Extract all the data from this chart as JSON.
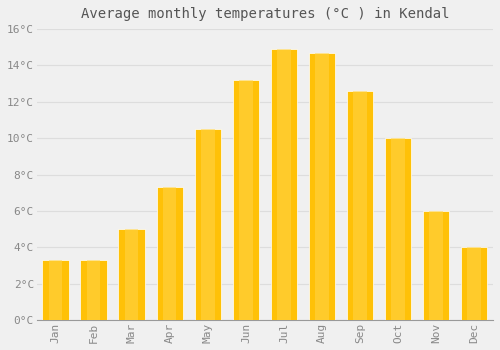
{
  "title": "Average monthly temperatures (°C ) in Kendal",
  "months": [
    "Jan",
    "Feb",
    "Mar",
    "Apr",
    "May",
    "Jun",
    "Jul",
    "Aug",
    "Sep",
    "Oct",
    "Nov",
    "Dec"
  ],
  "temperatures": [
    3.3,
    3.3,
    5.0,
    7.3,
    10.5,
    13.2,
    14.9,
    14.7,
    12.6,
    10.0,
    6.0,
    4.0
  ],
  "bar_color": "#FFC107",
  "bar_edge_color": "#F5A623",
  "ylim": [
    0,
    16
  ],
  "yticks": [
    0,
    2,
    4,
    6,
    8,
    10,
    12,
    14,
    16
  ],
  "grid_color": "#dddddd",
  "background_color": "#f0f0f0",
  "title_fontsize": 10,
  "tick_fontsize": 8,
  "font_family": "monospace"
}
